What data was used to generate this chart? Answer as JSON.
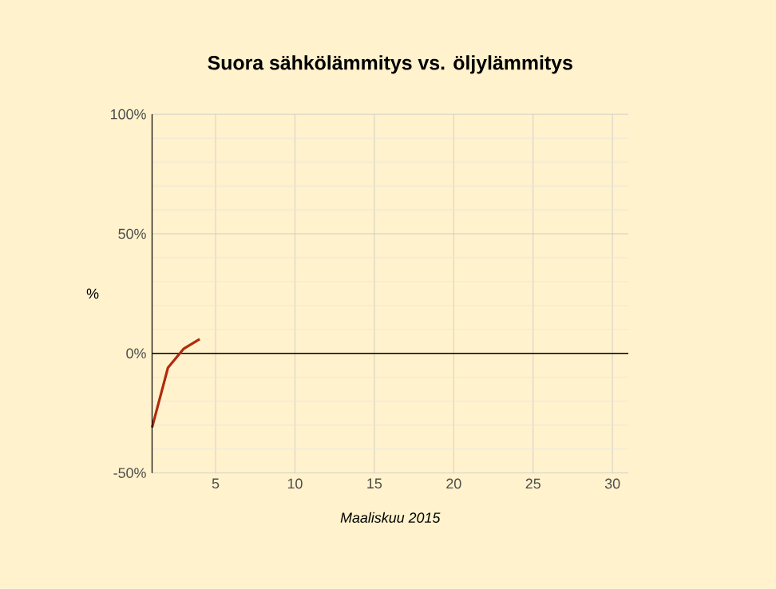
{
  "chart_data": {
    "type": "line",
    "title": "Suora sähkölämmitys vs. öljylämmitys",
    "xlabel": "Maaliskuu 2015",
    "ylabel": "%",
    "x": [
      1,
      2,
      3,
      4
    ],
    "series": [
      {
        "color": "#b02a0c",
        "values": [
          -31,
          -6,
          2,
          6
        ]
      }
    ],
    "xlim": [
      1,
      31
    ],
    "xticks": [
      5,
      10,
      15,
      20,
      25,
      30
    ],
    "ylim": [
      -50,
      100
    ],
    "yticks": [
      {
        "value": -50,
        "label": "-50%"
      },
      {
        "value": 0,
        "label": "0%"
      },
      {
        "value": 50,
        "label": "50%"
      },
      {
        "value": 100,
        "label": "100%"
      }
    ],
    "ref_lines": [
      {
        "axis": "y",
        "value": 0,
        "color": "#000000"
      }
    ],
    "grid": true,
    "marker": "none",
    "line_style": "solid"
  }
}
